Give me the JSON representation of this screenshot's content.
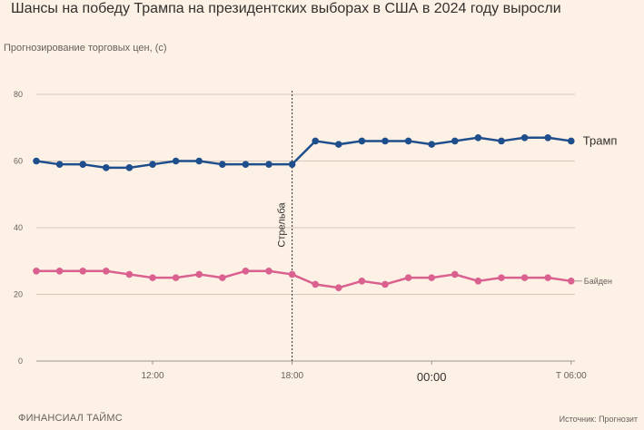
{
  "title": "Шансы на победу Трампа на президентских выборах в США в 2024 году выросли",
  "subtitle": "Прогнозирование торговых цен, (с)",
  "footer": {
    "brand": "ФИНАНСИАЛ ТАЙМС",
    "source": "Источник: Прогнозит"
  },
  "chart_data": {
    "type": "line",
    "title": "Шансы на победу Трампа на президентских выборах в США в 2024 году выросли",
    "ylabel": "Прогнозирование торговых цен, (с)",
    "ylim": [
      0,
      80
    ],
    "yticks": [
      0,
      20,
      40,
      60,
      80
    ],
    "xticks": [
      {
        "label": "12:00",
        "index": 5
      },
      {
        "label": "18:00",
        "index": 11
      },
      {
        "label": "00:00",
        "index": 17
      },
      {
        "label": "Т 06:00",
        "index": 23
      }
    ],
    "grid": true,
    "annotation": {
      "label": "Стрельба",
      "index": 11
    },
    "colors": {
      "Трамп": "#1f4e8c",
      "Байден": "#d9608f"
    },
    "series": [
      {
        "name": "Трамп",
        "values": [
          60,
          59,
          59,
          58,
          58,
          59,
          60,
          60,
          59,
          59,
          59,
          59,
          66,
          65,
          66,
          66,
          66,
          65,
          66,
          67,
          66,
          67,
          67,
          66
        ]
      },
      {
        "name": "Байден",
        "values": [
          27,
          27,
          27,
          27,
          26,
          25,
          25,
          26,
          25,
          27,
          27,
          26,
          23,
          22,
          24,
          23,
          25,
          25,
          26,
          24,
          25,
          25,
          25,
          24
        ]
      }
    ]
  }
}
